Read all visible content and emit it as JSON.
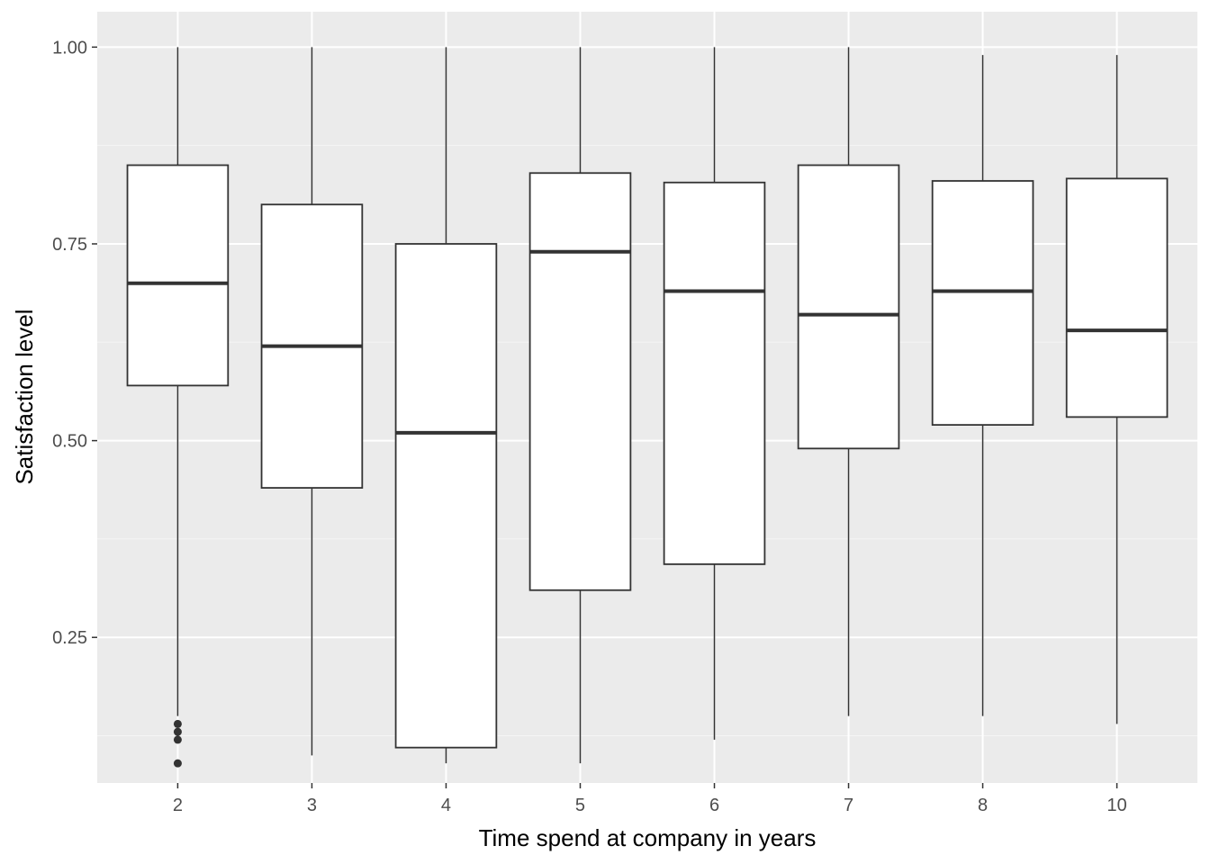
{
  "chart_data": {
    "type": "boxplot",
    "title": "",
    "xlabel": "Time spend at company in years",
    "ylabel": "Satisfaction level",
    "ylim": [
      0.065,
      1.045
    ],
    "yticks": [
      0.25,
      0.5,
      0.75,
      1.0
    ],
    "ytick_labels": [
      "0.25",
      "0.50",
      "0.75",
      "1.00"
    ],
    "grid": true,
    "legend": "none",
    "categories": [
      "2",
      "3",
      "4",
      "5",
      "6",
      "7",
      "8",
      "10"
    ],
    "boxes": [
      {
        "category": "2",
        "whisker_low": 0.15,
        "q1": 0.57,
        "median": 0.7,
        "q3": 0.85,
        "whisker_high": 1.0,
        "outliers": [
          0.14,
          0.13,
          0.12,
          0.09
        ]
      },
      {
        "category": "3",
        "whisker_low": 0.1,
        "q1": 0.44,
        "median": 0.62,
        "q3": 0.8,
        "whisker_high": 1.0,
        "outliers": []
      },
      {
        "category": "4",
        "whisker_low": 0.09,
        "q1": 0.11,
        "median": 0.51,
        "q3": 0.75,
        "whisker_high": 1.0,
        "outliers": []
      },
      {
        "category": "5",
        "whisker_low": 0.09,
        "q1": 0.31,
        "median": 0.74,
        "q3": 0.84,
        "whisker_high": 1.0,
        "outliers": []
      },
      {
        "category": "6",
        "whisker_low": 0.12,
        "q1": 0.343,
        "median": 0.69,
        "q3": 0.828,
        "whisker_high": 1.0,
        "outliers": []
      },
      {
        "category": "7",
        "whisker_low": 0.15,
        "q1": 0.49,
        "median": 0.66,
        "q3": 0.85,
        "whisker_high": 1.0,
        "outliers": []
      },
      {
        "category": "8",
        "whisker_low": 0.15,
        "q1": 0.52,
        "median": 0.69,
        "q3": 0.83,
        "whisker_high": 0.99,
        "outliers": []
      },
      {
        "category": "10",
        "whisker_low": 0.14,
        "q1": 0.53,
        "median": 0.64,
        "q3": 0.833,
        "whisker_high": 0.99,
        "outliers": []
      }
    ],
    "colors": {
      "panel_background": "#ebebeb",
      "grid_major": "#ffffff",
      "grid_minor": "#f5f5f5",
      "box_fill": "#ffffff",
      "box_stroke": "#333333",
      "tick_text": "#4d4d4d",
      "axis_title_text": "#000000"
    }
  }
}
